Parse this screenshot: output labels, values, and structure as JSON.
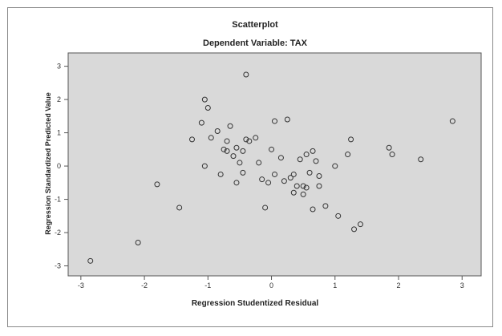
{
  "chart_data": {
    "type": "scatter",
    "title": "Scatterplot",
    "subtitle": "Dependent Variable: TAX",
    "xlabel": "Regression Studentized Residual",
    "ylabel": "Regression Standardized Predicted Value",
    "xlim": [
      -3.2,
      3.3
    ],
    "ylim": [
      -3.3,
      3.4
    ],
    "xticks": [
      -3,
      -2,
      -1,
      0,
      1,
      2,
      3
    ],
    "yticks": [
      -3,
      -2,
      -1,
      0,
      1,
      2,
      3
    ],
    "grid": false,
    "marker": "circle-open",
    "colors": {
      "plot_bg": "#d9d9d9",
      "marker_stroke": "#333333",
      "frame": "#8a8a8a"
    },
    "points": [
      {
        "x": -2.85,
        "y": -2.85
      },
      {
        "x": -2.1,
        "y": -2.3
      },
      {
        "x": -1.8,
        "y": -0.55
      },
      {
        "x": -1.45,
        "y": -1.25
      },
      {
        "x": -1.25,
        "y": 0.8
      },
      {
        "x": -1.1,
        "y": 1.3
      },
      {
        "x": -1.05,
        "y": 2.0
      },
      {
        "x": -1.0,
        "y": 1.75
      },
      {
        "x": -1.05,
        "y": 0.0
      },
      {
        "x": -0.95,
        "y": 0.85
      },
      {
        "x": -0.85,
        "y": 1.05
      },
      {
        "x": -0.8,
        "y": -0.25
      },
      {
        "x": -0.75,
        "y": 0.5
      },
      {
        "x": -0.7,
        "y": 0.45
      },
      {
        "x": -0.7,
        "y": 0.75
      },
      {
        "x": -0.65,
        "y": 1.2
      },
      {
        "x": -0.6,
        "y": 0.3
      },
      {
        "x": -0.55,
        "y": 0.55
      },
      {
        "x": -0.5,
        "y": 0.1
      },
      {
        "x": -0.45,
        "y": 0.45
      },
      {
        "x": -0.4,
        "y": 0.8
      },
      {
        "x": -0.35,
        "y": 0.75
      },
      {
        "x": -0.55,
        "y": -0.5
      },
      {
        "x": -0.45,
        "y": -0.2
      },
      {
        "x": -0.4,
        "y": 2.75
      },
      {
        "x": -0.25,
        "y": 0.85
      },
      {
        "x": -0.2,
        "y": 0.1
      },
      {
        "x": -0.15,
        "y": -0.4
      },
      {
        "x": -0.05,
        "y": -0.5
      },
      {
        "x": 0.0,
        "y": 0.5
      },
      {
        "x": -0.1,
        "y": -1.25
      },
      {
        "x": 0.05,
        "y": -0.25
      },
      {
        "x": 0.05,
        "y": 1.35
      },
      {
        "x": 0.15,
        "y": 0.25
      },
      {
        "x": 0.2,
        "y": -0.45
      },
      {
        "x": 0.25,
        "y": 1.4
      },
      {
        "x": 0.3,
        "y": -0.35
      },
      {
        "x": 0.35,
        "y": -0.25
      },
      {
        "x": 0.35,
        "y": -0.8
      },
      {
        "x": 0.4,
        "y": -0.6
      },
      {
        "x": 0.45,
        "y": 0.2
      },
      {
        "x": 0.5,
        "y": -0.6
      },
      {
        "x": 0.5,
        "y": -0.85
      },
      {
        "x": 0.55,
        "y": -0.65
      },
      {
        "x": 0.55,
        "y": 0.35
      },
      {
        "x": 0.6,
        "y": -0.2
      },
      {
        "x": 0.65,
        "y": 0.45
      },
      {
        "x": 0.65,
        "y": -1.3
      },
      {
        "x": 0.7,
        "y": 0.15
      },
      {
        "x": 0.75,
        "y": -0.3
      },
      {
        "x": 0.75,
        "y": -0.6
      },
      {
        "x": 0.85,
        "y": -1.2
      },
      {
        "x": 1.0,
        "y": 0.0
      },
      {
        "x": 1.05,
        "y": -1.5
      },
      {
        "x": 1.2,
        "y": 0.35
      },
      {
        "x": 1.25,
        "y": 0.8
      },
      {
        "x": 1.3,
        "y": -1.9
      },
      {
        "x": 1.4,
        "y": -1.75
      },
      {
        "x": 1.85,
        "y": 0.55
      },
      {
        "x": 1.9,
        "y": 0.35
      },
      {
        "x": 2.35,
        "y": 0.2
      },
      {
        "x": 2.85,
        "y": 1.35
      }
    ]
  }
}
